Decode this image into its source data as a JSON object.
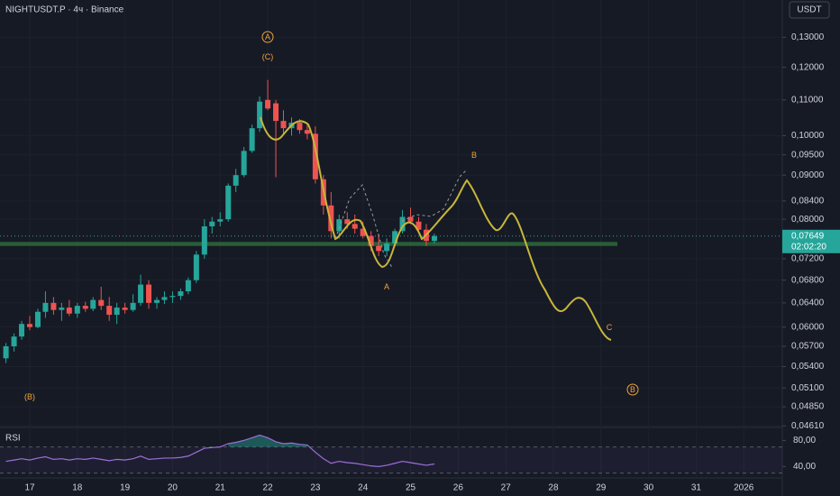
{
  "header": {
    "symbol": "NIGHTUSDT.P · 4ч · Binance",
    "currency": "USDT"
  },
  "chart_data": {
    "type": "candlestick",
    "log_scale": true,
    "grid": true,
    "up_color": "#26a69a",
    "down_color": "#ef5350",
    "x": [
      16.5,
      16.67,
      16.83,
      17,
      17.17,
      17.33,
      17.5,
      17.67,
      17.83,
      18,
      18.17,
      18.33,
      18.5,
      18.67,
      18.83,
      19,
      19.17,
      19.33,
      19.5,
      19.67,
      19.83,
      20,
      20.17,
      20.33,
      20.5,
      20.67,
      20.83,
      21,
      21.17,
      21.33,
      21.5,
      21.67,
      21.83,
      22,
      22.17,
      22.33,
      22.5,
      22.67,
      22.83,
      23,
      23.17,
      23.33,
      23.5,
      23.67,
      23.83,
      24,
      24.17,
      24.33,
      24.5,
      24.67,
      24.83,
      25,
      25.17,
      25.33,
      25.5
    ],
    "open": [
      0.0552,
      0.057,
      0.0585,
      0.0605,
      0.06,
      0.0625,
      0.064,
      0.0628,
      0.0632,
      0.0622,
      0.0635,
      0.063,
      0.0645,
      0.0635,
      0.062,
      0.0632,
      0.0628,
      0.064,
      0.0672,
      0.064,
      0.0645,
      0.065,
      0.0652,
      0.066,
      0.068,
      0.0728,
      0.0785,
      0.0795,
      0.08,
      0.0875,
      0.09,
      0.096,
      0.102,
      0.11,
      0.109,
      0.104,
      0.102,
      0.1035,
      0.1015,
      0.1005,
      0.089,
      0.083,
      0.0775,
      0.08,
      0.079,
      0.078,
      0.0765,
      0.0745,
      0.0735,
      0.075,
      0.0775,
      0.0805,
      0.0795,
      0.0778,
      0.0755
    ],
    "high": [
      0.0575,
      0.059,
      0.061,
      0.0618,
      0.063,
      0.066,
      0.065,
      0.064,
      0.0645,
      0.064,
      0.0642,
      0.065,
      0.0668,
      0.065,
      0.064,
      0.064,
      0.0655,
      0.069,
      0.068,
      0.065,
      0.066,
      0.066,
      0.0665,
      0.0685,
      0.0735,
      0.08,
      0.0805,
      0.0815,
      0.088,
      0.0915,
      0.097,
      0.103,
      0.111,
      0.116,
      0.11,
      0.107,
      0.105,
      0.1045,
      0.103,
      0.1025,
      0.09,
      0.086,
      0.081,
      0.0815,
      0.081,
      0.0795,
      0.0775,
      0.077,
      0.076,
      0.078,
      0.082,
      0.0825,
      0.0805,
      0.079,
      0.077
    ],
    "low": [
      0.0545,
      0.0562,
      0.058,
      0.0595,
      0.0598,
      0.0615,
      0.062,
      0.061,
      0.0618,
      0.0615,
      0.0625,
      0.0626,
      0.0628,
      0.061,
      0.0605,
      0.0622,
      0.0625,
      0.0635,
      0.063,
      0.063,
      0.0638,
      0.064,
      0.0645,
      0.0655,
      0.0675,
      0.072,
      0.077,
      0.0785,
      0.0795,
      0.086,
      0.0895,
      0.0955,
      0.101,
      0.107,
      0.0895,
      0.1005,
      0.1,
      0.1005,
      0.099,
      0.088,
      0.081,
      0.076,
      0.076,
      0.078,
      0.077,
      0.076,
      0.0735,
      0.0725,
      0.0725,
      0.0745,
      0.077,
      0.079,
      0.077,
      0.0745,
      0.075
    ],
    "close": [
      0.057,
      0.0585,
      0.0605,
      0.06,
      0.0625,
      0.064,
      0.0628,
      0.0632,
      0.0622,
      0.0635,
      0.063,
      0.0645,
      0.0635,
      0.062,
      0.0632,
      0.0628,
      0.064,
      0.0672,
      0.064,
      0.0645,
      0.065,
      0.0652,
      0.066,
      0.068,
      0.0728,
      0.0785,
      0.0795,
      0.08,
      0.0875,
      0.09,
      0.096,
      0.102,
      0.1095,
      0.1075,
      0.104,
      0.102,
      0.1035,
      0.1015,
      0.1005,
      0.089,
      0.083,
      0.0775,
      0.08,
      0.079,
      0.078,
      0.0765,
      0.0745,
      0.0735,
      0.075,
      0.0775,
      0.0805,
      0.0795,
      0.0778,
      0.0755,
      0.0765
    ],
    "xlim": [
      16.375,
      32.81
    ],
    "xticks": [
      17,
      18,
      19,
      20,
      21,
      22,
      23,
      24,
      25,
      26,
      27,
      28,
      29,
      30,
      31,
      {
        "value": 32,
        "label": "2026"
      }
    ],
    "ylim": [
      0.0459,
      0.1436
    ],
    "yticks": [
      {
        "value": 0.13,
        "label": "0,13000"
      },
      {
        "value": 0.12,
        "label": "0,12000"
      },
      {
        "value": 0.11,
        "label": "0,11000"
      },
      {
        "value": 0.1,
        "label": "0,10000"
      },
      {
        "value": 0.095,
        "label": "0,09500"
      },
      {
        "value": 0.09,
        "label": "0,09000"
      },
      {
        "value": 0.084,
        "label": "0,08400"
      },
      {
        "value": 0.08,
        "label": "0,08000"
      },
      {
        "value": 0.072,
        "label": "0,07200"
      },
      {
        "value": 0.068,
        "label": "0,06800"
      },
      {
        "value": 0.064,
        "label": "0,06400"
      },
      {
        "value": 0.06,
        "label": "0,06000"
      },
      {
        "value": 0.057,
        "label": "0,05700"
      },
      {
        "value": 0.054,
        "label": "0,05400"
      },
      {
        "value": 0.051,
        "label": "0,05100"
      },
      {
        "value": 0.0485,
        "label": "0,04850"
      },
      {
        "value": 0.0461,
        "label": "0,04610"
      }
    ],
    "current_price": {
      "value": 0.07649,
      "label": "0,07649"
    },
    "countdown": "02:02:20",
    "support_zone": [
      0.0745,
      0.0753
    ],
    "annotations": [
      "A",
      "(C)",
      "A",
      "B",
      "C",
      "(B)",
      "B"
    ],
    "rsi": {
      "name": "RSI",
      "color": "#9c6fd6",
      "values": [
        48,
        50,
        52,
        50,
        53,
        55,
        51,
        52,
        50,
        52,
        51,
        53,
        51,
        49,
        51,
        50,
        52,
        56,
        51,
        52,
        53,
        53,
        54,
        56,
        62,
        68,
        69,
        70,
        75,
        77,
        80,
        84,
        88,
        84,
        78,
        75,
        76,
        74,
        73,
        62,
        52,
        45,
        48,
        46,
        45,
        43,
        41,
        40,
        42,
        45,
        48,
        46,
        44,
        42,
        44
      ],
      "ylim": [
        24,
        97
      ],
      "yticks": [
        {
          "value": 80,
          "label": "80,00"
        },
        {
          "value": 40,
          "label": "40,00"
        }
      ],
      "bands": [
        70,
        30
      ]
    }
  }
}
